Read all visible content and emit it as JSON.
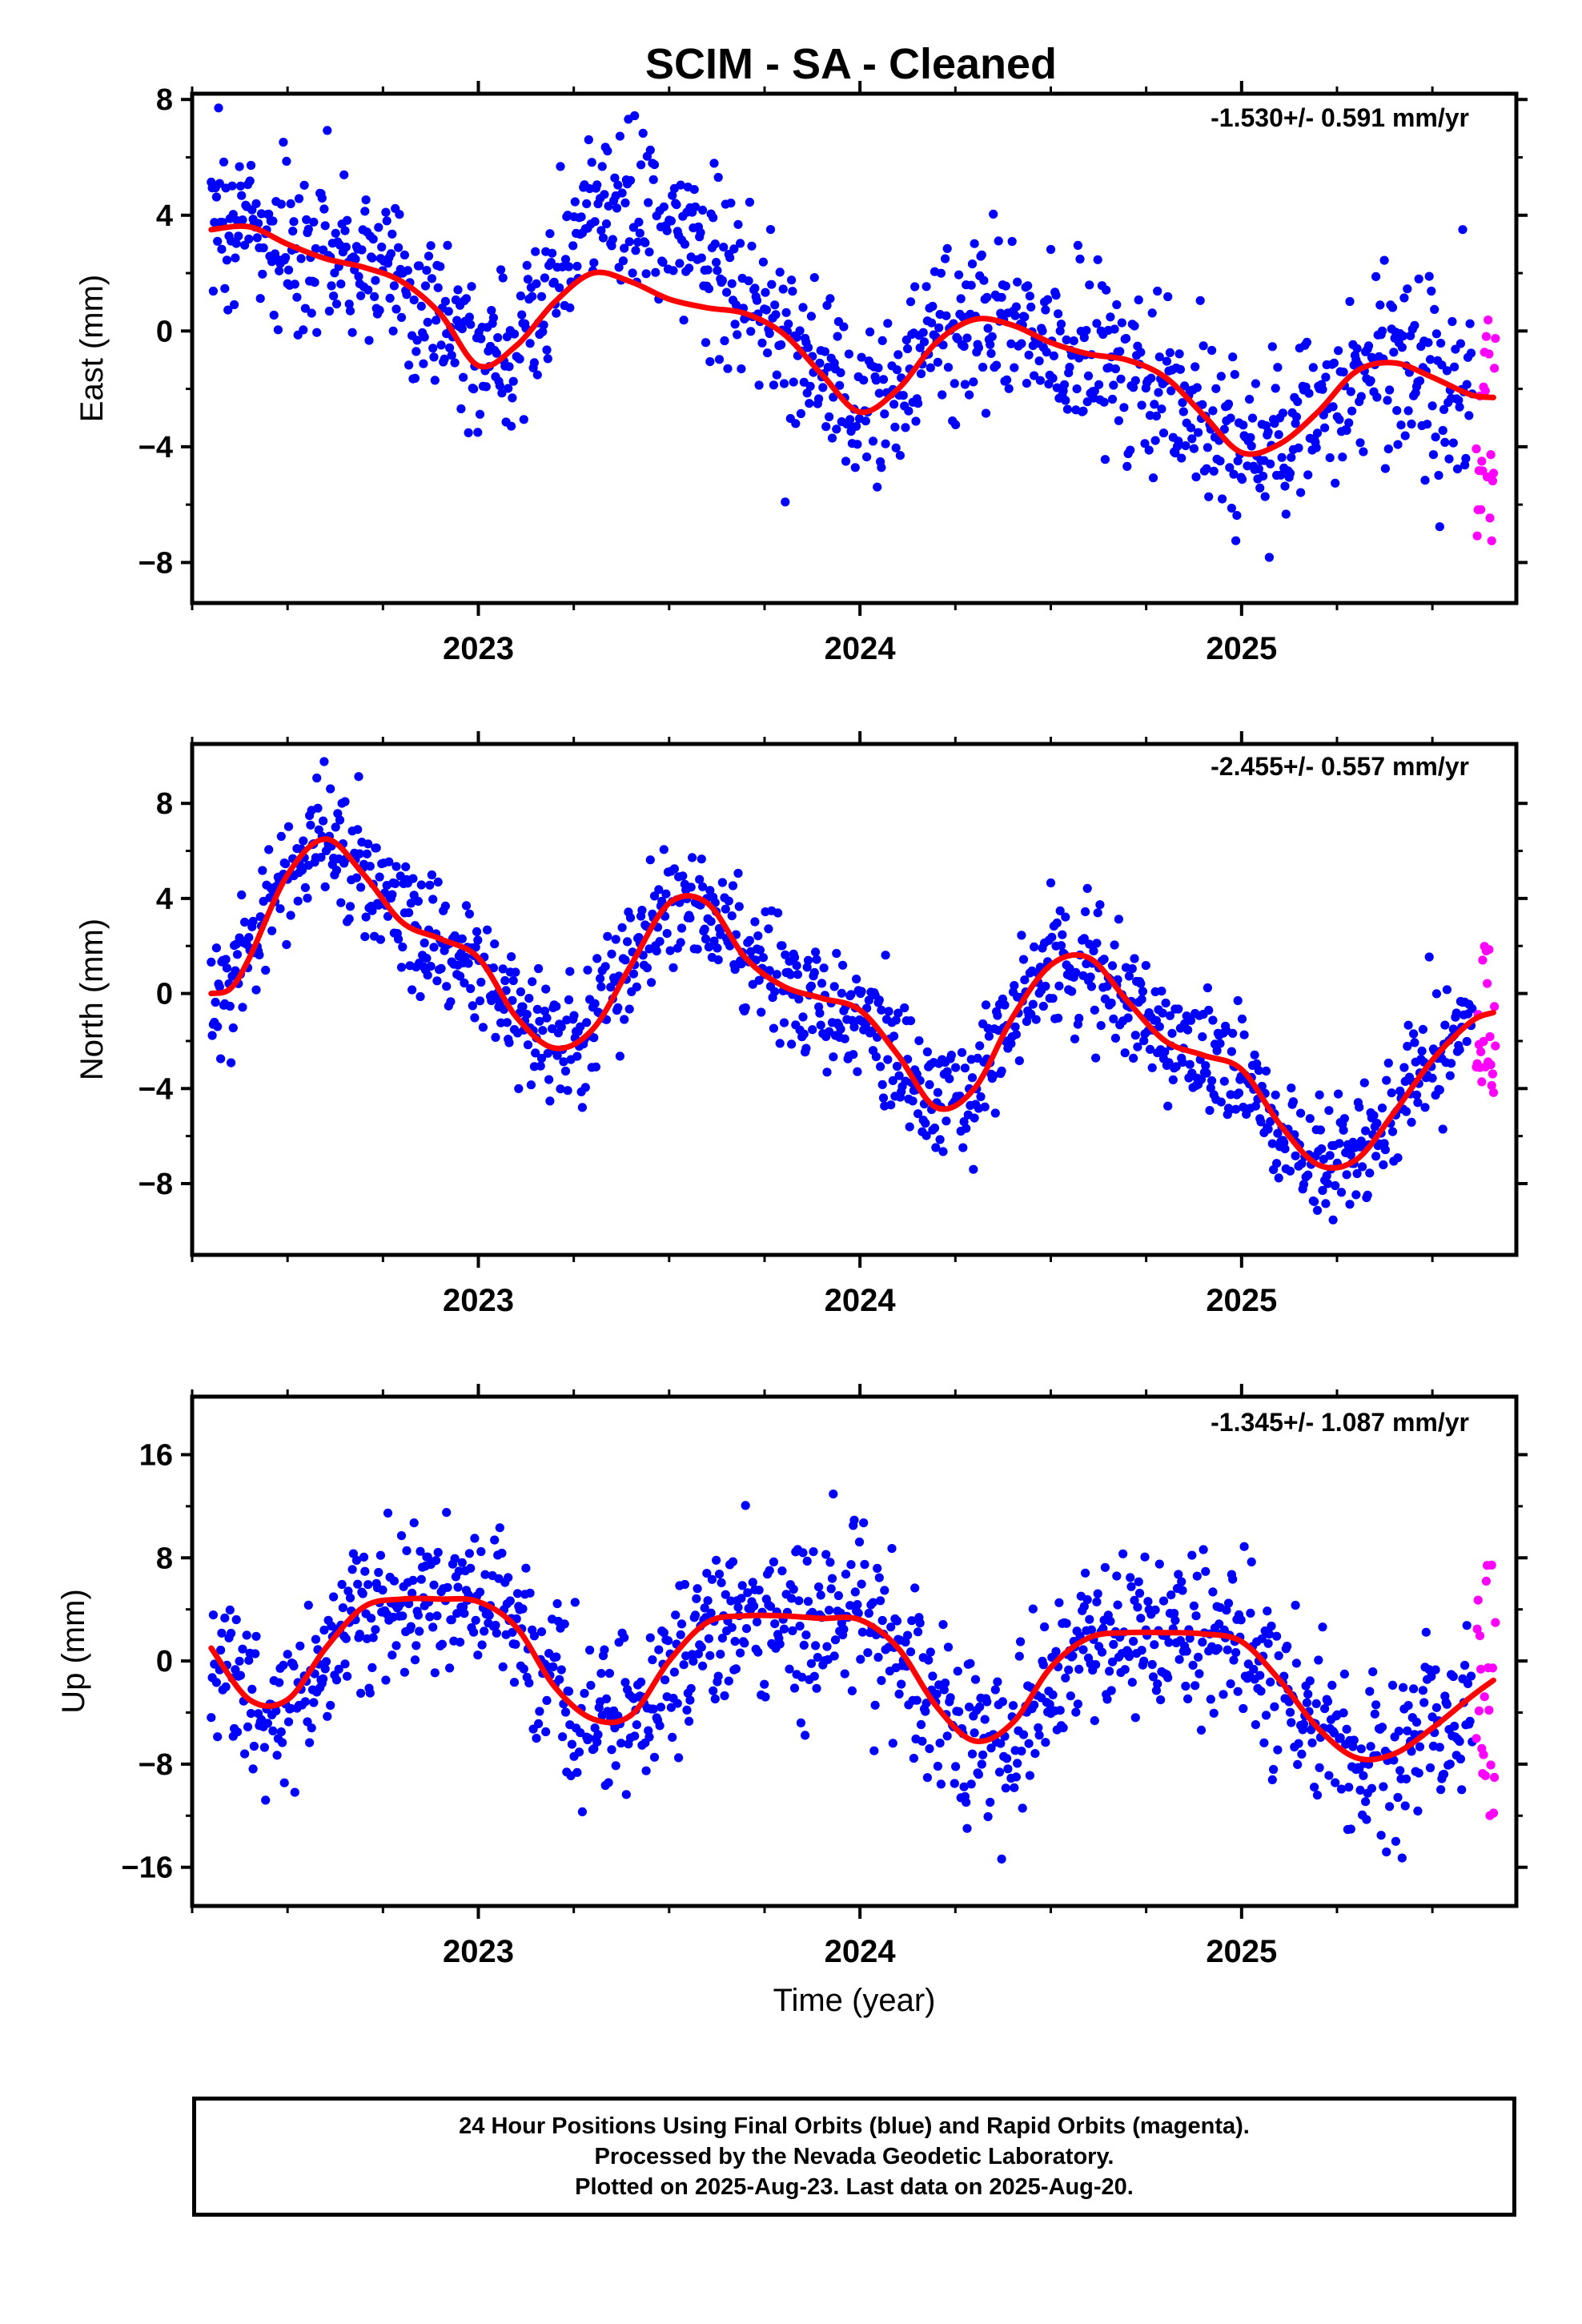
{
  "title": "SCIM  - SA - Cleaned",
  "xlabel": "Time (year)",
  "footer": {
    "line1": "24 Hour Positions Using Final Orbits (blue) and Rapid Orbits (magenta).",
    "line2": "Processed by the Nevada Geodetic Laboratory.",
    "line3": "Plotted on 2025-Aug-23. Last data on 2025-Aug-20."
  },
  "colors": {
    "final_orbits": "#0000ff",
    "rapid_orbits": "#ff00ff",
    "model": "#ff0000"
  },
  "chart_data": [
    {
      "type": "scatter",
      "ylabel": "East (mm)",
      "rate": "-1.530+/- 0.591 mm/yr",
      "xlim": [
        2022.25,
        2025.72
      ],
      "ylim": [
        -9.4,
        8.2
      ],
      "yticks": [
        8,
        4,
        0,
        -4,
        -8
      ],
      "ytick_labels": [
        "8",
        "4",
        "0",
        "−4",
        "−8"
      ],
      "xticks": [
        2023,
        2024,
        2025
      ],
      "xtick_labels": [
        "2023",
        "2024",
        "2025"
      ],
      "grid": false,
      "series": [
        {
          "kind": "final",
          "trend": {
            "t0": 2022.3,
            "y0": 2.2,
            "rate": -1.53,
            "ampC": 0.05,
            "ampS": 0.2,
            "noise": 1.5,
            "offset": [
              [
                2023.12,
                2023.75,
                2.6
              ]
            ]
          }
        },
        {
          "kind": "rapid",
          "x_range": [
            2025.615,
            2025.665
          ],
          "y_range": [
            -7.4,
            0.5
          ],
          "n": 22
        },
        {
          "kind": "model",
          "x": [
            2022.3,
            2022.4,
            2022.5,
            2022.6,
            2022.7,
            2022.8,
            2022.9,
            2023.0,
            2023.1,
            2023.2,
            2023.3,
            2023.4,
            2023.5,
            2023.6,
            2023.7,
            2023.8,
            2023.9,
            2024.0,
            2024.1,
            2024.2,
            2024.3,
            2024.4,
            2024.5,
            2024.6,
            2024.7,
            2024.8,
            2024.9,
            2025.0,
            2025.1,
            2025.2,
            2025.3,
            2025.4,
            2025.5,
            2025.6,
            2025.66
          ],
          "y": [
            3.5,
            3.6,
            3.0,
            2.5,
            2.2,
            1.7,
            0.6,
            -1.2,
            -0.5,
            1.0,
            2.0,
            1.7,
            1.1,
            0.8,
            0.6,
            -0.1,
            -1.5,
            -2.8,
            -2.0,
            -0.4,
            0.4,
            0.2,
            -0.4,
            -0.8,
            -1.0,
            -1.6,
            -2.9,
            -4.2,
            -3.9,
            -2.8,
            -1.4,
            -1.1,
            -1.6,
            -2.2,
            -2.3
          ]
        }
      ]
    },
    {
      "type": "scatter",
      "ylabel": "North (mm)",
      "rate": "-2.455+/- 0.557 mm/yr",
      "xlim": [
        2022.25,
        2025.72
      ],
      "ylim": [
        -11.0,
        10.5
      ],
      "yticks": [
        8,
        4,
        0,
        -4,
        -8
      ],
      "ytick_labels": [
        "8",
        "4",
        "0",
        "−4",
        "−8"
      ],
      "xticks": [
        2023,
        2024,
        2025
      ],
      "xtick_labels": [
        "2023",
        "2024",
        "2025"
      ],
      "grid": false,
      "series": [
        {
          "kind": "final",
          "trend": {
            "t0": 2022.3,
            "y0": 3.2,
            "rate": -2.455,
            "ampC": 0.1,
            "ampS": 0.2,
            "noise": 1.3,
            "offset": []
          }
        },
        {
          "kind": "rapid",
          "x_range": [
            2025.615,
            2025.665
          ],
          "y_range": [
            -4.2,
            3.0
          ],
          "n": 22
        },
        {
          "kind": "model",
          "x": [
            2022.3,
            2022.35,
            2022.4,
            2022.5,
            2022.6,
            2022.7,
            2022.8,
            2022.9,
            2023.0,
            2023.1,
            2023.2,
            2023.3,
            2023.4,
            2023.5,
            2023.6,
            2023.7,
            2023.8,
            2023.9,
            2024.0,
            2024.1,
            2024.2,
            2024.3,
            2024.4,
            2024.5,
            2024.6,
            2024.7,
            2024.8,
            2024.9,
            2025.0,
            2025.1,
            2025.2,
            2025.3,
            2025.4,
            2025.5,
            2025.6,
            2025.66
          ],
          "y": [
            0.0,
            0.2,
            1.5,
            5.0,
            6.5,
            5.0,
            3.0,
            2.3,
            1.5,
            -1.0,
            -2.3,
            -1.5,
            1.2,
            3.8,
            3.8,
            1.5,
            0.3,
            -0.2,
            -0.7,
            -2.6,
            -4.8,
            -4.0,
            -1.0,
            1.2,
            1.5,
            -0.3,
            -2.0,
            -2.6,
            -3.2,
            -5.5,
            -7.2,
            -7.0,
            -5.0,
            -2.8,
            -1.2,
            -0.8
          ]
        }
      ]
    },
    {
      "type": "scatter",
      "ylabel": "Up (mm)",
      "rate": "-1.345+/- 1.087 mm/yr",
      "xlim": [
        2022.25,
        2025.72
      ],
      "ylim": [
        -19.0,
        20.5
      ],
      "yticks": [
        16,
        8,
        0,
        -8,
        -16
      ],
      "ytick_labels": [
        "16",
        "8",
        "0",
        "−8",
        "−16"
      ],
      "xticks": [
        2023,
        2024,
        2025
      ],
      "xtick_labels": [
        "2023",
        "2024",
        "2025"
      ],
      "grid": false,
      "series": [
        {
          "kind": "final",
          "trend": {
            "t0": 2022.3,
            "y0": 0.8,
            "rate": -1.345,
            "ampC": -1.5,
            "ampS": 4.2,
            "noise": 3.2,
            "offset": []
          }
        },
        {
          "kind": "rapid",
          "x_range": [
            2025.615,
            2025.665
          ],
          "y_range": [
            -13.0,
            9.0
          ],
          "n": 22
        },
        {
          "kind": "model",
          "x": [
            2022.3,
            2022.4,
            2022.5,
            2022.6,
            2022.7,
            2022.8,
            2022.9,
            2023.0,
            2023.1,
            2023.2,
            2023.3,
            2023.4,
            2023.5,
            2023.6,
            2023.7,
            2023.8,
            2023.9,
            2024.0,
            2024.1,
            2024.2,
            2024.3,
            2024.4,
            2024.5,
            2024.6,
            2024.7,
            2024.8,
            2024.9,
            2025.0,
            2025.1,
            2025.2,
            2025.3,
            2025.4,
            2025.5,
            2025.6,
            2025.66
          ],
          "y": [
            1.0,
            -3.0,
            -3.0,
            1.0,
            4.2,
            4.8,
            4.8,
            4.6,
            2.6,
            -2.0,
            -4.5,
            -4.2,
            0.0,
            3.0,
            3.5,
            3.5,
            3.3,
            3.2,
            1.0,
            -3.5,
            -6.2,
            -4.8,
            -0.5,
            1.8,
            2.2,
            2.2,
            2.1,
            1.5,
            -1.5,
            -5.2,
            -7.5,
            -7.2,
            -5.2,
            -2.8,
            -1.5
          ]
        }
      ]
    }
  ]
}
